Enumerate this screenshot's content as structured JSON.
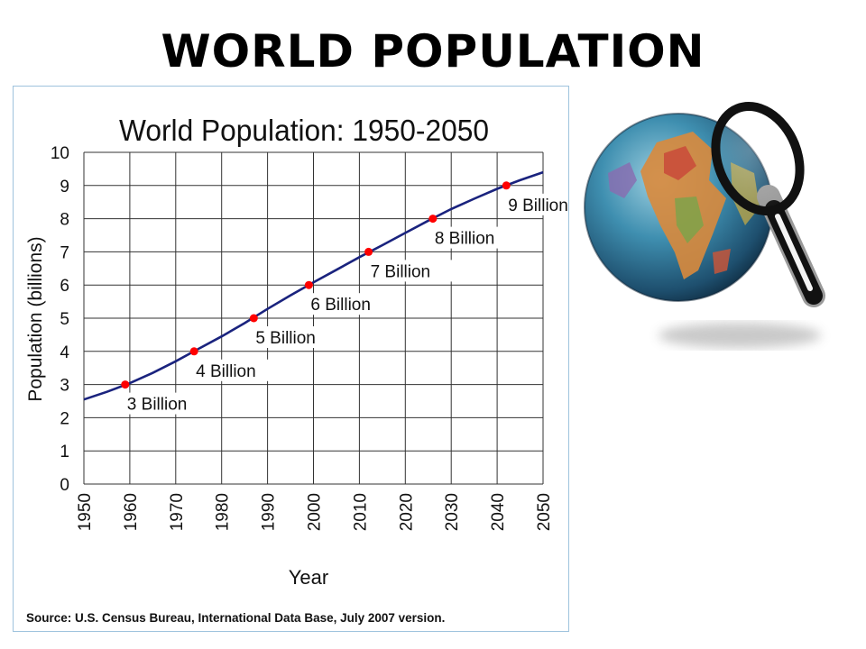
{
  "slide": {
    "title": "WORLD POPULATION"
  },
  "chart_data": {
    "type": "line",
    "title": "World Population: 1950-2050",
    "xlabel": "Year",
    "ylabel": "Population (billions)",
    "xlim": [
      1950,
      2050
    ],
    "ylim": [
      0,
      10
    ],
    "x_ticks": [
      "1950",
      "1960",
      "1970",
      "1980",
      "1990",
      "2000",
      "2010",
      "2020",
      "2030",
      "2040",
      "2050"
    ],
    "y_ticks": [
      "0",
      "1",
      "2",
      "3",
      "4",
      "5",
      "6",
      "7",
      "8",
      "9",
      "10"
    ],
    "grid": true,
    "source": "Source: U.S. Census Bureau, International Data Base, July 2007 version.",
    "series": [
      {
        "color": "#1a237e",
        "x": [
          1950,
          1955,
          1960,
          1965,
          1970,
          1975,
          1980,
          1985,
          1990,
          1995,
          2000,
          2005,
          2010,
          2015,
          2020,
          2025,
          2030,
          2035,
          2040,
          2045,
          2050
        ],
        "y": [
          2.55,
          2.78,
          3.04,
          3.35,
          3.7,
          4.08,
          4.45,
          4.85,
          5.28,
          5.69,
          6.08,
          6.46,
          6.84,
          7.2,
          7.57,
          7.94,
          8.29,
          8.6,
          8.9,
          9.16,
          9.4
        ]
      }
    ],
    "milestones": [
      {
        "x": 1959,
        "y": 3,
        "label": "3 Billion"
      },
      {
        "x": 1974,
        "y": 4,
        "label": "4 Billion"
      },
      {
        "x": 1987,
        "y": 5,
        "label": "5 Billion"
      },
      {
        "x": 1999,
        "y": 6,
        "label": "6 Billion"
      },
      {
        "x": 2012,
        "y": 7,
        "label": "7 Billion"
      },
      {
        "x": 2026,
        "y": 8,
        "label": "8 Billion"
      },
      {
        "x": 2042,
        "y": 9,
        "label": "9 Billion"
      }
    ],
    "milestone_color": "#ff0000"
  },
  "illustration": {
    "icon": "globe-with-magnifier-icon"
  }
}
